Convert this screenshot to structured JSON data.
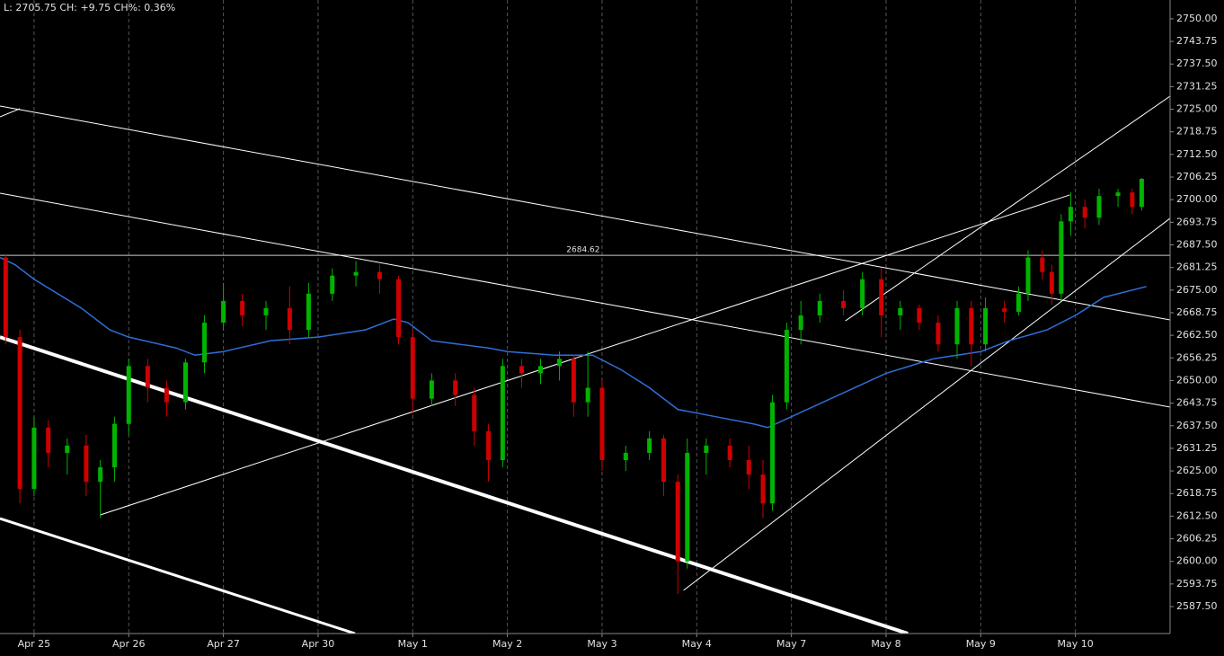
{
  "chart_data": {
    "type": "candlestick",
    "header": "L: 2705.75 CH: +9.75   CH%: 0.36%",
    "xlim": [
      -0.36,
      12.0
    ],
    "ylim": [
      2580.05,
      2755.2
    ],
    "xticks": [
      {
        "value": 0,
        "label": "Apr 25"
      },
      {
        "value": 1,
        "label": "Apr 26"
      },
      {
        "value": 2,
        "label": "Apr 27"
      },
      {
        "value": 3,
        "label": "Apr 30"
      },
      {
        "value": 4,
        "label": "May 1"
      },
      {
        "value": 5,
        "label": "May 2"
      },
      {
        "value": 6,
        "label": "May 3"
      },
      {
        "value": 7,
        "label": "May 4"
      },
      {
        "value": 8,
        "label": "May 7"
      },
      {
        "value": 9,
        "label": "May 8"
      },
      {
        "value": 10,
        "label": "May 9"
      },
      {
        "value": 11,
        "label": "May 10"
      }
    ],
    "yticks": [
      {
        "value": 2750,
        "label": "2750.00"
      },
      {
        "value": 2743.75,
        "label": "2743.75"
      },
      {
        "value": 2737.5,
        "label": "2737.50"
      },
      {
        "value": 2731.25,
        "label": "2731.25"
      },
      {
        "value": 2725,
        "label": "2725.00"
      },
      {
        "value": 2718.75,
        "label": "2718.75"
      },
      {
        "value": 2712.5,
        "label": "2712.50"
      },
      {
        "value": 2706.25,
        "label": "2706.25"
      },
      {
        "value": 2700,
        "label": "2700.00"
      },
      {
        "value": 2693.75,
        "label": "2693.75"
      },
      {
        "value": 2687.5,
        "label": "2687.50"
      },
      {
        "value": 2681.25,
        "label": "2681.25"
      },
      {
        "value": 2675,
        "label": "2675.00"
      },
      {
        "value": 2668.75,
        "label": "2668.75"
      },
      {
        "value": 2662.5,
        "label": "2662.50"
      },
      {
        "value": 2656.25,
        "label": "2656.25"
      },
      {
        "value": 2650,
        "label": "2650.00"
      },
      {
        "value": 2643.75,
        "label": "2643.75"
      },
      {
        "value": 2637.5,
        "label": "2637.50"
      },
      {
        "value": 2631.25,
        "label": "2631.25"
      },
      {
        "value": 2625,
        "label": "2625.00"
      },
      {
        "value": 2618.75,
        "label": "2618.75"
      },
      {
        "value": 2612.5,
        "label": "2612.50"
      },
      {
        "value": 2606.25,
        "label": "2606.25"
      },
      {
        "value": 2600,
        "label": "2600.00"
      },
      {
        "value": 2593.75,
        "label": "2593.75"
      },
      {
        "value": 2587.5,
        "label": "2587.50"
      }
    ],
    "grid": true,
    "up_color": "#00b400",
    "down_color": "#d00000",
    "x": [
      -0.3,
      -0.15,
      0.0,
      0.15,
      0.35,
      0.55,
      0.7,
      0.85,
      1.0,
      1.2,
      1.4,
      1.6,
      1.8,
      2.0,
      2.2,
      2.45,
      2.7,
      2.9,
      3.15,
      3.4,
      3.65,
      3.85,
      4.0,
      4.2,
      4.45,
      4.65,
      4.8,
      4.95,
      5.15,
      5.35,
      5.55,
      5.7,
      5.85,
      6.0,
      6.25,
      6.5,
      6.65,
      6.8,
      6.9,
      7.1,
      7.35,
      7.55,
      7.7,
      7.8,
      7.95,
      8.1,
      8.3,
      8.55,
      8.75,
      8.95,
      9.15,
      9.35,
      9.55,
      9.75,
      9.9,
      10.05,
      10.25,
      10.4,
      10.5,
      10.65,
      10.75,
      10.85,
      10.95,
      11.1,
      11.25,
      11.45,
      11.6,
      11.7
    ],
    "open": [
      2684,
      2662,
      2620,
      2637,
      2630,
      2632,
      2622,
      2626,
      2638,
      2654,
      2648,
      2644,
      2655,
      2666,
      2672,
      2668,
      2670,
      2664,
      2674,
      2679,
      2680,
      2678,
      2662,
      2645,
      2650,
      2646,
      2636,
      2628,
      2654,
      2652,
      2654,
      2656,
      2644,
      2648,
      2628,
      2630,
      2634,
      2622,
      2600,
      2630,
      2632,
      2628,
      2624,
      2616,
      2644,
      2664,
      2668,
      2672,
      2670,
      2678,
      2668,
      2670,
      2666,
      2660,
      2670,
      2660,
      2670,
      2669,
      2674,
      2684,
      2680,
      2674,
      2694,
      2698,
      2695,
      2701,
      2702,
      2698
    ],
    "high": [
      2685,
      2664,
      2640,
      2639,
      2634,
      2635,
      2628,
      2640,
      2656,
      2656,
      2650,
      2656,
      2668,
      2677,
      2674,
      2672,
      2676,
      2677,
      2681,
      2683,
      2682,
      2679,
      2664,
      2652,
      2652,
      2648,
      2638,
      2656,
      2656,
      2656,
      2658,
      2657,
      2658,
      2650,
      2632,
      2636,
      2635,
      2624,
      2634,
      2634,
      2634,
      2632,
      2628,
      2646,
      2666,
      2672,
      2674,
      2675,
      2680,
      2681,
      2672,
      2671,
      2668,
      2672,
      2672,
      2673,
      2672,
      2676,
      2686,
      2686,
      2682,
      2696,
      2702,
      2700,
      2703,
      2703,
      2703,
      2706
    ],
    "low": [
      2660,
      2616,
      2618,
      2626,
      2624,
      2618,
      2612,
      2622,
      2635,
      2644,
      2640,
      2642,
      2652,
      2664,
      2665,
      2664,
      2660,
      2662,
      2672,
      2676,
      2674,
      2660,
      2641,
      2643,
      2643,
      2632,
      2622,
      2626,
      2648,
      2649,
      2650,
      2640,
      2640,
      2625,
      2625,
      2628,
      2618,
      2591,
      2598,
      2624,
      2626,
      2620,
      2612,
      2614,
      2642,
      2660,
      2666,
      2668,
      2668,
      2662,
      2664,
      2664,
      2658,
      2656,
      2654,
      2658,
      2666,
      2668,
      2672,
      2678,
      2671,
      2672,
      2690,
      2692,
      2693,
      2698,
      2696,
      2697
    ],
    "close": [
      2662,
      2620,
      2637,
      2630,
      2632,
      2622,
      2626,
      2638,
      2654,
      2648,
      2644,
      2655,
      2666,
      2672,
      2668,
      2670,
      2664,
      2674,
      2679,
      2680,
      2678,
      2662,
      2645,
      2650,
      2646,
      2636,
      2628,
      2654,
      2652,
      2654,
      2656,
      2644,
      2648,
      2628,
      2630,
      2634,
      2622,
      2600,
      2630,
      2632,
      2628,
      2624,
      2616,
      2644,
      2664,
      2668,
      2672,
      2670,
      2678,
      2668,
      2670,
      2666,
      2660,
      2670,
      2660,
      2670,
      2669,
      2674,
      2684,
      2680,
      2674,
      2694,
      2698,
      2695,
      2701,
      2702,
      2698,
      2705.75
    ],
    "moving_average": {
      "color": "#2f6fd8",
      "x": [
        -0.36,
        -0.2,
        0,
        0.5,
        0.8,
        1.0,
        1.5,
        1.7,
        2.0,
        2.5,
        3.0,
        3.5,
        3.8,
        3.95,
        4.2,
        4.5,
        4.8,
        5.0,
        5.5,
        5.9,
        6.2,
        6.5,
        6.8,
        7.2,
        7.6,
        7.75,
        8.0,
        8.5,
        9.0,
        9.5,
        10.0,
        10.3,
        10.7,
        11.0,
        11.3,
        11.75
      ],
      "values": [
        2684,
        2682,
        2678,
        2670,
        2664,
        2662,
        2659,
        2657,
        2658,
        2661,
        2662,
        2664,
        2667,
        2666,
        2661,
        2660,
        2659,
        2658,
        2657,
        2657,
        2653,
        2648,
        2642,
        2640,
        2638,
        2637,
        2640,
        2646,
        2652,
        2656,
        2658,
        2661,
        2664,
        2668,
        2673,
        2676
      ]
    },
    "trendlines": [
      {
        "x": [
          -0.36,
          12.0
        ],
        "y": [
          2725.9,
          2666.76
        ],
        "width": 1
      },
      {
        "x": [
          -0.36,
          12.0
        ],
        "y": [
          2701.8,
          2642.66
        ],
        "width": 1
      },
      {
        "x": [
          -0.36,
          9.23
        ],
        "y": [
          2662.0,
          2580.05
        ],
        "width": 4
      },
      {
        "x": [
          -0.36,
          3.39
        ],
        "y": [
          2611.85,
          2580.05
        ],
        "width": 3
      },
      {
        "x": [
          -0.36,
          -0.15
        ],
        "y": [
          2722.9,
          2725.15
        ],
        "width": 1
      },
      {
        "x": [
          0.7,
          10.94
        ],
        "y": [
          2612.85,
          2701.3
        ],
        "width": 1
      },
      {
        "x": [
          6.86,
          12.0
        ],
        "y": [
          2591.97,
          2694.84
        ],
        "width": 1
      },
      {
        "x": [
          8.57,
          12.0
        ],
        "y": [
          2666.5,
          2728.6
        ],
        "width": 1
      }
    ],
    "hline": {
      "value": 2684.62,
      "label": "2684.62",
      "x": 5.8
    }
  }
}
